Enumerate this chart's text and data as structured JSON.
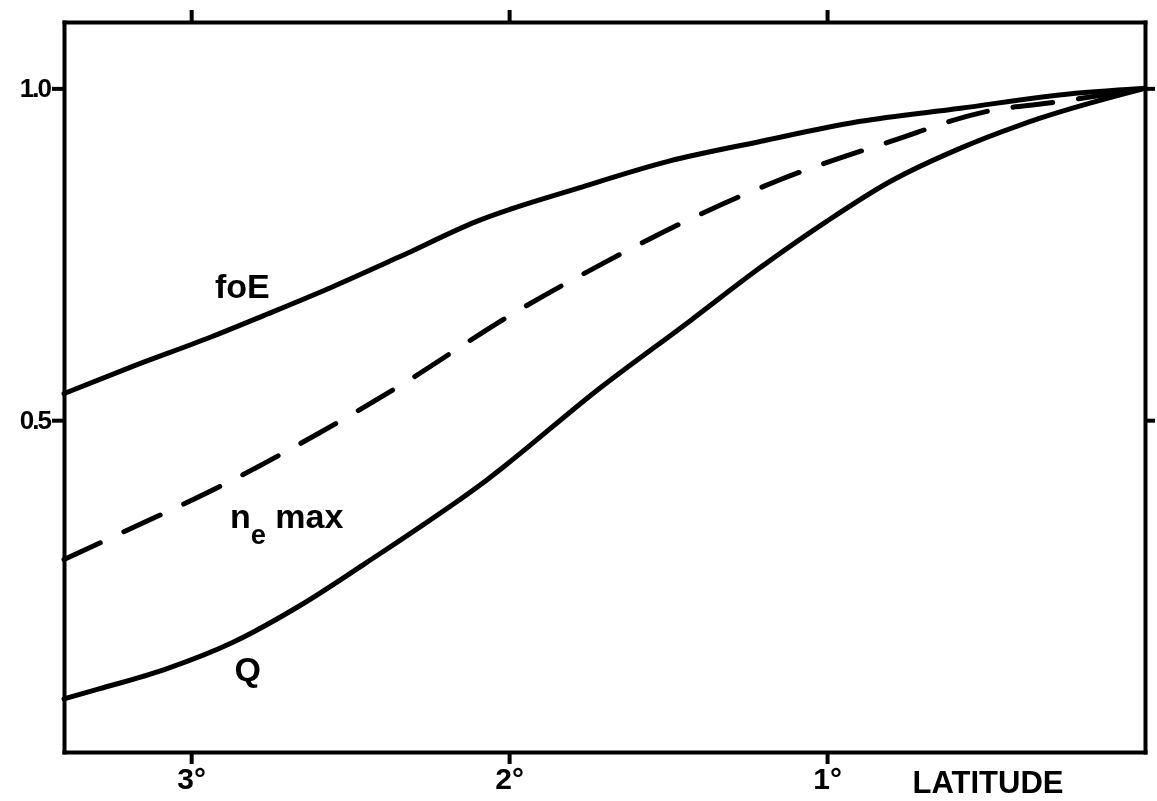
{
  "chart_data": {
    "type": "line",
    "xlabel": "LATITUDE",
    "xlim": [
      3.4,
      0
    ],
    "xticks": [
      {
        "value": 3,
        "label": "3°"
      },
      {
        "value": 2,
        "label": "2°"
      },
      {
        "value": 1,
        "label": "1°"
      }
    ],
    "ylim": [
      0,
      1.1
    ],
    "yticks": [
      {
        "value": 0.5,
        "label": "0.5"
      },
      {
        "value": 1,
        "label": "1.0"
      }
    ],
    "series": [
      {
        "name": "foE",
        "color": "#000000",
        "line_style": "solid",
        "x": [
          3.4,
          3.19,
          2.94,
          2.76,
          2.56,
          2.35,
          2.1,
          1.78,
          1.5,
          1.21,
          0.9,
          0.58,
          0.27,
          0
        ],
        "values": [
          0.54,
          0.58,
          0.625,
          0.66,
          0.7,
          0.745,
          0.8,
          0.85,
          0.89,
          0.92,
          0.95,
          0.97,
          0.99,
          1.0
        ]
      },
      {
        "name": "n$_{e}$ max",
        "color": "#000000",
        "line_style": "dashed",
        "x": [
          3.4,
          3.22,
          2.91,
          2.6,
          2.35,
          1.99,
          1.69,
          1.4,
          1.16,
          0.8,
          0.5,
          0.27,
          0
        ],
        "values": [
          0.29,
          0.33,
          0.4,
          0.48,
          0.55,
          0.66,
          0.74,
          0.81,
          0.86,
          0.92,
          0.965,
          0.98,
          1.0
        ]
      },
      {
        "name": "Q",
        "color": "#000000",
        "line_style": "solid",
        "x": [
          3.4,
          3.29,
          3.08,
          2.87,
          2.66,
          2.45,
          2.07,
          1.71,
          1.43,
          1.21,
          1.0,
          0.8,
          0.58,
          0.33,
          0
        ],
        "values": [
          0.08,
          0.095,
          0.125,
          0.165,
          0.22,
          0.285,
          0.41,
          0.55,
          0.65,
          0.73,
          0.8,
          0.86,
          0.91,
          0.955,
          1.0
        ]
      }
    ]
  }
}
